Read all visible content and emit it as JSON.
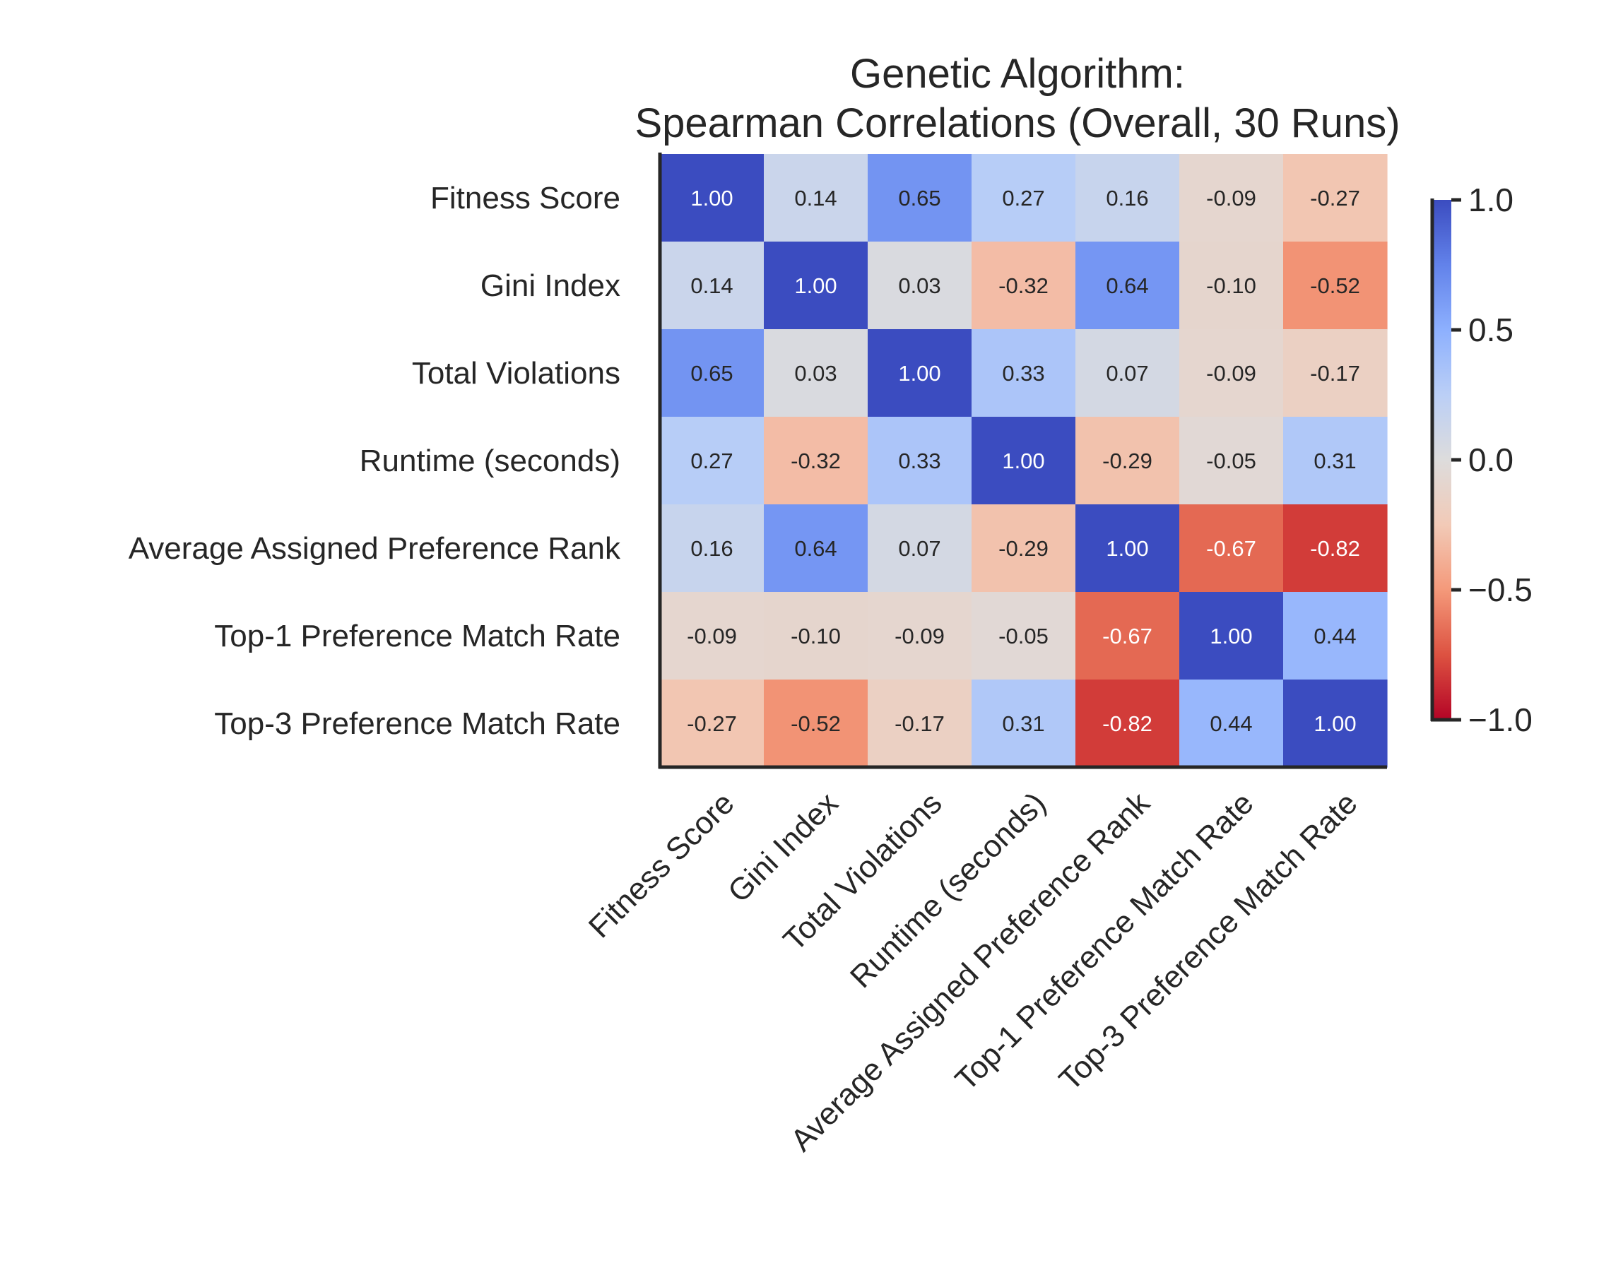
{
  "chart_data": {
    "type": "heatmap",
    "title": "Genetic Algorithm:\nSpearman Correlations (Overall, 30 Runs)",
    "title_lines": [
      "Genetic Algorithm:",
      "Spearman Correlations (Overall, 30 Runs)"
    ],
    "row_labels": [
      "Fitness Score",
      "Gini Index",
      "Total Violations",
      "Runtime (seconds)",
      "Average Assigned Preference Rank",
      "Top-1 Preference Match Rate",
      "Top-3 Preference Match Rate"
    ],
    "col_labels": [
      "Fitness Score",
      "Gini Index",
      "Total Violations",
      "Runtime (seconds)",
      "Average Assigned Preference Rank",
      "Top-1 Preference Match Rate",
      "Top-3 Preference Match Rate"
    ],
    "values": [
      [
        1.0,
        0.14,
        0.65,
        0.27,
        0.16,
        -0.09,
        -0.27
      ],
      [
        0.14,
        1.0,
        0.03,
        -0.32,
        0.64,
        -0.1,
        -0.52
      ],
      [
        0.65,
        0.03,
        1.0,
        0.33,
        0.07,
        -0.09,
        -0.17
      ],
      [
        0.27,
        -0.32,
        0.33,
        1.0,
        -0.29,
        -0.05,
        0.31
      ],
      [
        0.16,
        0.64,
        0.07,
        -0.29,
        1.0,
        -0.67,
        -0.82
      ],
      [
        -0.09,
        -0.1,
        -0.09,
        -0.05,
        -0.67,
        1.0,
        0.44
      ],
      [
        -0.27,
        -0.52,
        -0.17,
        0.31,
        -0.82,
        0.44,
        1.0
      ]
    ],
    "value_format": "0.00",
    "colormap": "coolwarm_r",
    "vmin": -1.0,
    "vmax": 1.0,
    "colorbar": {
      "ticks": [
        1.0,
        0.5,
        0.0,
        -0.5,
        -1.0
      ],
      "tick_labels": [
        "1.0",
        "0.5",
        "0.0",
        "−0.5",
        "−1.0"
      ]
    },
    "colors": {
      "positive_end": "#3b4cc0",
      "neutral": "#dddcdc",
      "negative_end": "#b40426",
      "axis": "#262626"
    }
  }
}
